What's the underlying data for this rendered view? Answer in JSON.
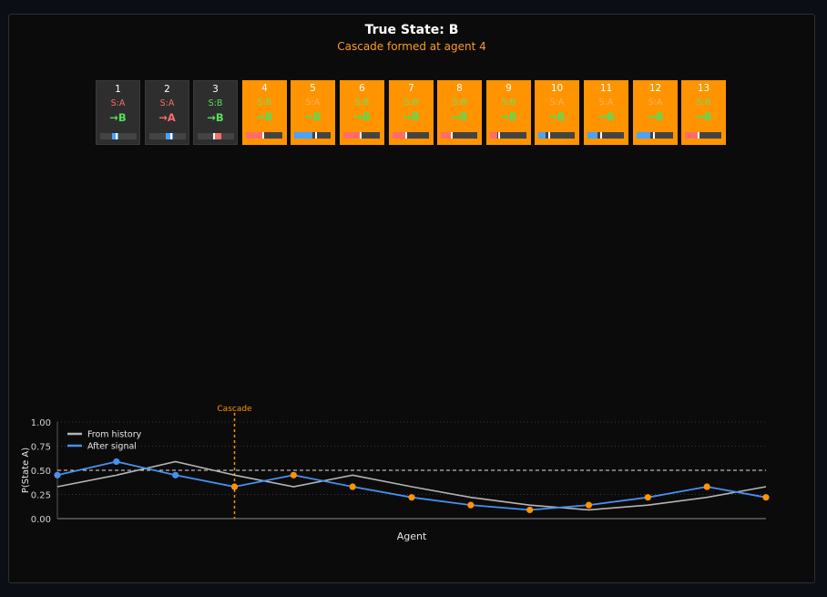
{
  "header": {
    "title": "True State: B",
    "subtitle": "Cascade formed at agent 4"
  },
  "colors": {
    "accent": "#ff9400",
    "signal_a": "#ff6b6b",
    "signal_b": "#52e05a",
    "history_line": "#b4b4b4",
    "after_line": "#4a8ff0",
    "cascade_marker": "#ff9400"
  },
  "agents": [
    {
      "num": "1",
      "signal": "S:A",
      "action": "→B",
      "sig": "A",
      "act": "B",
      "cascade": false,
      "prior": 0.33,
      "post": 0.45
    },
    {
      "num": "2",
      "signal": "S:A",
      "action": "→A",
      "sig": "A",
      "act": "A",
      "cascade": false,
      "prior": 0.45,
      "post": 0.59
    },
    {
      "num": "3",
      "signal": "S:B",
      "action": "→B",
      "sig": "B",
      "act": "B",
      "cascade": false,
      "prior": 0.59,
      "post": 0.45
    },
    {
      "num": "4",
      "signal": "S:B",
      "action": "→B",
      "sig": "B",
      "act": "B",
      "cascade": true,
      "prior": 0.45,
      "post": 0.33
    },
    {
      "num": "5",
      "signal": "S:A",
      "action": "→B",
      "sig": "A",
      "act": "B",
      "cascade": true,
      "prior": 0.33,
      "post": 0.45
    },
    {
      "num": "6",
      "signal": "S:B",
      "action": "→B",
      "sig": "B",
      "act": "B",
      "cascade": true,
      "prior": 0.45,
      "post": 0.33
    },
    {
      "num": "7",
      "signal": "S:B",
      "action": "→B",
      "sig": "B",
      "act": "B",
      "cascade": true,
      "prior": 0.33,
      "post": 0.22
    },
    {
      "num": "8",
      "signal": "S:B",
      "action": "→B",
      "sig": "B",
      "act": "B",
      "cascade": true,
      "prior": 0.22,
      "post": 0.14
    },
    {
      "num": "9",
      "signal": "S:B",
      "action": "→B",
      "sig": "B",
      "act": "B",
      "cascade": true,
      "prior": 0.14,
      "post": 0.09
    },
    {
      "num": "10",
      "signal": "S:A",
      "action": "→B",
      "sig": "A",
      "act": "B",
      "cascade": true,
      "prior": 0.09,
      "post": 0.14
    },
    {
      "num": "11",
      "signal": "S:A",
      "action": "→B",
      "sig": "A",
      "act": "B",
      "cascade": true,
      "prior": 0.14,
      "post": 0.22
    },
    {
      "num": "12",
      "signal": "S:A",
      "action": "→B",
      "sig": "A",
      "act": "B",
      "cascade": true,
      "prior": 0.22,
      "post": 0.33
    },
    {
      "num": "13",
      "signal": "S:B",
      "action": "→B",
      "sig": "B",
      "act": "B",
      "cascade": true,
      "prior": 0.33,
      "post": 0.22
    }
  ],
  "chart_data": {
    "type": "line",
    "title": "",
    "xlabel": "Agent",
    "ylabel": "P(State A)",
    "ylim": [
      0,
      1
    ],
    "yticks": [
      "0.00",
      "0.25",
      "0.50",
      "0.75",
      "1.00"
    ],
    "x": [
      1,
      2,
      3,
      4,
      5,
      6,
      7,
      8,
      9,
      10,
      11,
      12,
      13
    ],
    "series": [
      {
        "name": "From history",
        "values": [
          0.33,
          0.45,
          0.59,
          0.45,
          0.33,
          0.45,
          0.33,
          0.22,
          0.14,
          0.09,
          0.14,
          0.22,
          0.33
        ]
      },
      {
        "name": "After signal",
        "values": [
          0.45,
          0.59,
          0.45,
          0.33,
          0.45,
          0.33,
          0.22,
          0.14,
          0.09,
          0.14,
          0.22,
          0.33,
          0.22
        ]
      }
    ],
    "threshold": 0.5,
    "cascade_x": 4,
    "cascade_label": "Cascade",
    "legend": "top-left",
    "grid": true
  }
}
